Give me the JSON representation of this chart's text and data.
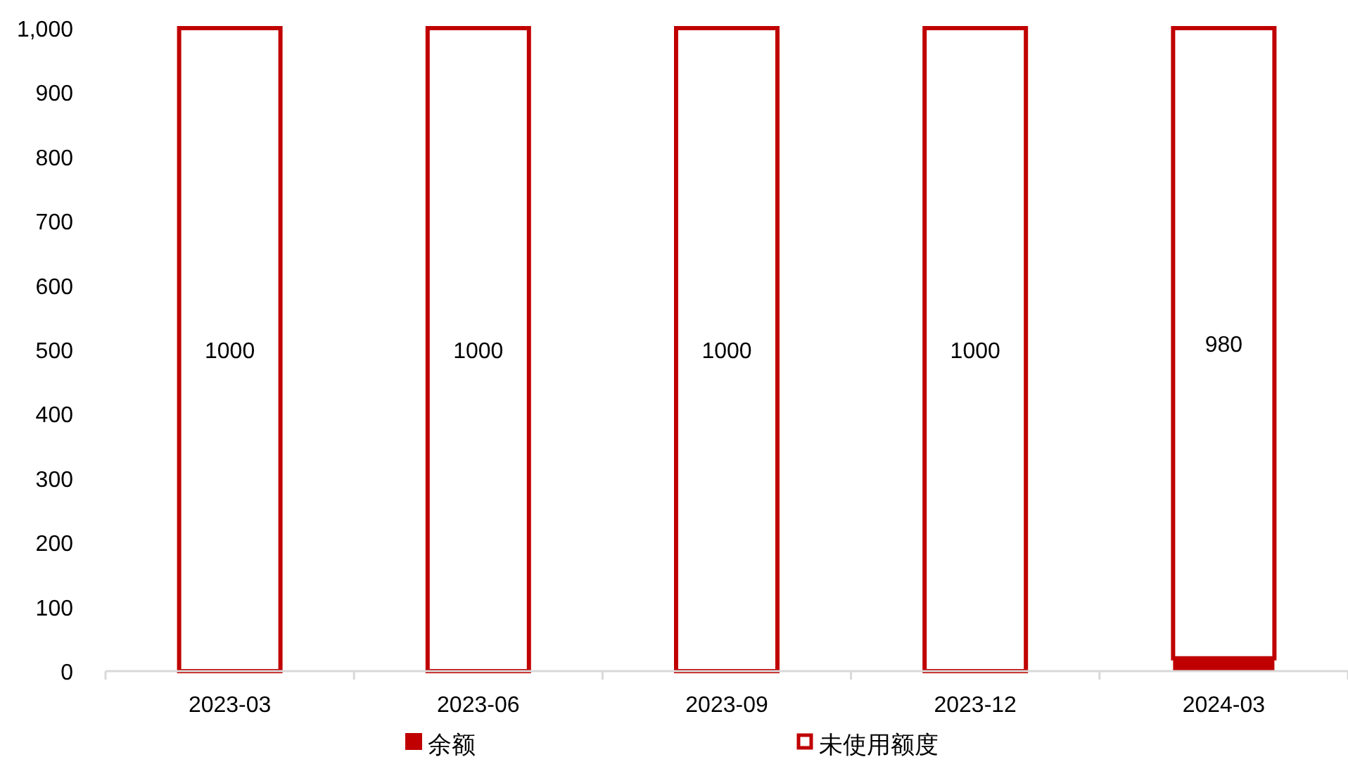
{
  "chart_data": {
    "type": "bar",
    "stacked": true,
    "categories": [
      "2023-03",
      "2023-06",
      "2023-09",
      "2023-12",
      "2024-03"
    ],
    "series": [
      {
        "name": "余额",
        "color": "#c00000",
        "values": [
          0,
          0,
          0,
          0,
          20
        ]
      },
      {
        "name": "未使用额度",
        "color": "#c00000",
        "values": [
          1000,
          1000,
          1000,
          1000,
          980
        ],
        "value_labels": [
          "1000",
          "1000",
          "1000",
          "1000",
          "980"
        ]
      }
    ],
    "ylim": [
      0,
      1000
    ],
    "yticks": [
      0,
      100,
      200,
      300,
      400,
      500,
      600,
      700,
      800,
      900,
      {
        "value": 1000,
        "label": "1,000"
      }
    ],
    "grid": false,
    "legend": "bottom"
  }
}
